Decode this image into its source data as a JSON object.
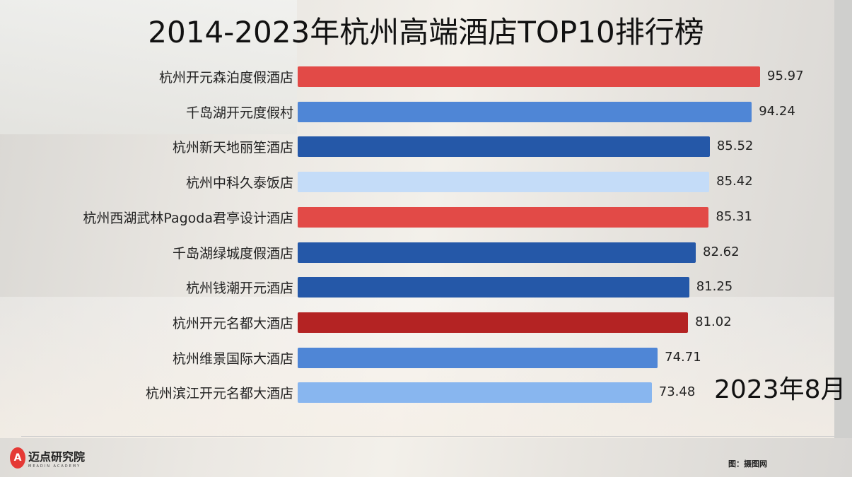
{
  "chart_data": {
    "type": "bar",
    "orientation": "horizontal",
    "title": "2014-2023年杭州高端酒店TOP10排行榜",
    "date_label": "2023年8月",
    "xlim": [
      0,
      100
    ],
    "categories": [
      "杭州开元森泊度假酒店",
      "千岛湖开元度假村",
      "杭州新天地丽笙酒店",
      "杭州中科久泰饭店",
      "杭州西湖武林Pagoda君亭设计酒店",
      "千岛湖绿城度假酒店",
      "杭州钱潮开元酒店",
      "杭州开元名都大酒店",
      "杭州维景国际大酒店",
      "杭州滨江开元名都大酒店"
    ],
    "values": [
      95.97,
      94.24,
      85.52,
      85.42,
      85.31,
      82.62,
      81.25,
      81.02,
      74.71,
      73.48
    ],
    "value_labels": [
      "95.97",
      "94.24",
      "85.52",
      "85.42",
      "85.31",
      "82.62",
      "81.25",
      "81.02",
      "74.71",
      "73.48"
    ],
    "colors": [
      "#e24a47",
      "#4f86d6",
      "#2558a8",
      "#c4dcf8",
      "#e24a47",
      "#2558a8",
      "#2558a8",
      "#b42323",
      "#4f86d6",
      "#88b6ef"
    ]
  },
  "footer": {
    "logo_text": "迈点研究院",
    "logo_subtext": "MEADIN ACADEMY",
    "credit": "图：摄图网"
  }
}
